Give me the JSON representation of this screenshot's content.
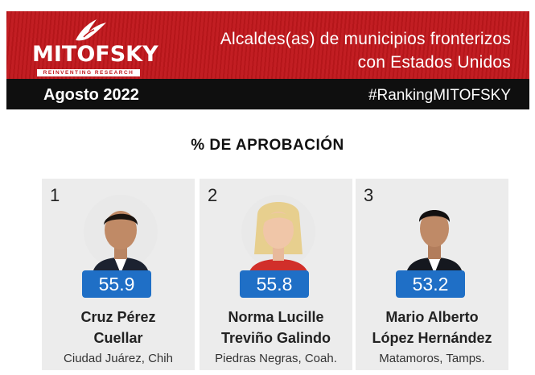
{
  "header": {
    "logo_text": "MITOFSKY",
    "logo_tagline": "REINVENTING RESEARCH",
    "title_line1": "Alcaldes(as) de municipios fronterizos",
    "title_line2": "con Estados Unidos",
    "date": "Agosto 2022",
    "hashtag": "#RankingMITOFSKY"
  },
  "section_title": "% DE APROBACIÓN",
  "colors": {
    "brand_red": "#c0171c",
    "bar_black": "#0f0f0f",
    "score_blue": "#1f6fc6"
  },
  "rankings": [
    {
      "rank": "1",
      "score": "55.9",
      "name_line1": "Cruz Pérez",
      "name_line2": "Cuellar",
      "place": "Ciudad Juárez, Chih"
    },
    {
      "rank": "2",
      "score": "55.8",
      "name_line1": "Norma Lucille",
      "name_line2": "Treviño Galindo",
      "place": "Piedras Negras, Coah."
    },
    {
      "rank": "3",
      "score": "53.2",
      "name_line1": "Mario Alberto",
      "name_line2": "López Hernández",
      "place": "Matamoros, Tamps."
    }
  ]
}
